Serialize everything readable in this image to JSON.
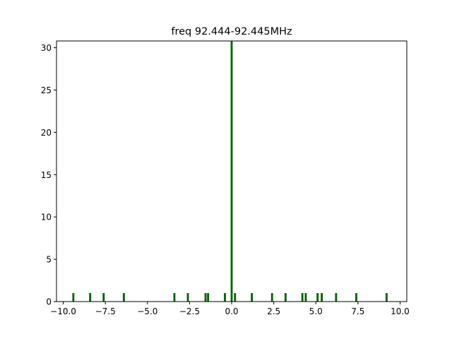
{
  "chart_data": {
    "type": "bar",
    "title": "freq 92.444-92.445MHz",
    "xlabel": "",
    "ylabel": "",
    "xlim": [
      -10.4,
      10.4
    ],
    "ylim": [
      0,
      30.8
    ],
    "grid": false,
    "legend": "none",
    "bar_color": "#006400",
    "bar_width": 0.12,
    "xticks": [
      -10.0,
      -7.5,
      -5.0,
      -2.5,
      0.0,
      2.5,
      5.0,
      7.5,
      10.0
    ],
    "xtick_labels": [
      "−10.0",
      "−7.5",
      "−5.0",
      "−2.5",
      "0.0",
      "2.5",
      "5.0",
      "7.5",
      "10.0"
    ],
    "yticks": [
      0,
      5,
      10,
      15,
      20,
      25,
      30
    ],
    "ytick_labels": [
      "0",
      "5",
      "10",
      "15",
      "20",
      "25",
      "30"
    ],
    "series": [
      {
        "x": [
          -9.4,
          -8.4,
          -7.6,
          -6.4,
          -3.4,
          -2.6,
          -1.55,
          -1.4,
          -0.4,
          0.0,
          0.2,
          1.2,
          2.4,
          3.2,
          4.2,
          4.4,
          5.1,
          5.35,
          6.2,
          7.4,
          9.2
        ],
        "values": [
          1,
          1,
          1,
          1,
          1,
          1,
          1,
          1,
          1,
          31,
          1,
          1,
          1,
          1,
          1,
          1,
          1,
          1,
          1,
          1,
          1
        ]
      }
    ]
  }
}
